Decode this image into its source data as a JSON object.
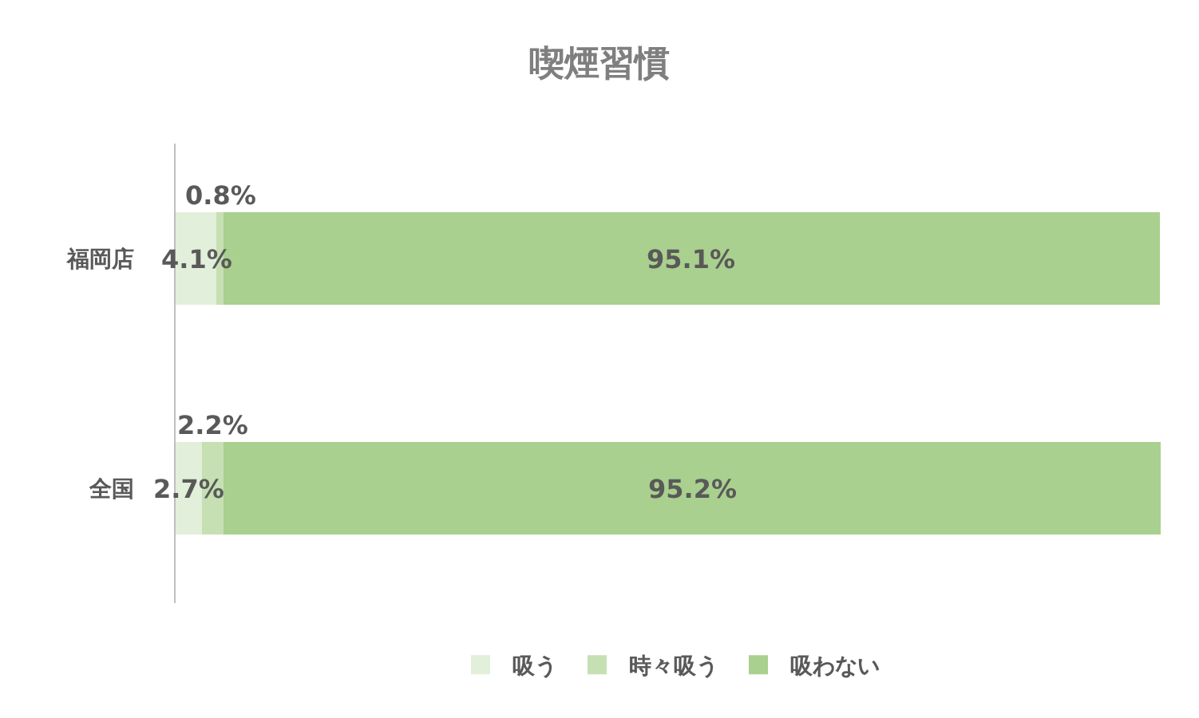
{
  "chart_data": {
    "type": "bar",
    "orientation": "horizontal",
    "stacked": true,
    "title": "喫煙習慣",
    "categories": [
      "福岡店",
      "全国"
    ],
    "series": [
      {
        "name": "吸う",
        "color": "#e2efda",
        "values": [
          4.1,
          2.7
        ],
        "value_labels": [
          "4.1%",
          "2.7%"
        ]
      },
      {
        "name": "時々吸う",
        "color": "#c6e0b4",
        "values": [
          0.8,
          2.2
        ],
        "value_labels": [
          "0.8%",
          "2.2%"
        ]
      },
      {
        "name": "吸わない",
        "color": "#a9d08e",
        "values": [
          95.1,
          95.2
        ],
        "value_labels": [
          "95.1%",
          "95.2%"
        ]
      }
    ],
    "xlim": [
      0,
      100.1
    ],
    "tick_labels": "y",
    "legend": "bottom"
  }
}
